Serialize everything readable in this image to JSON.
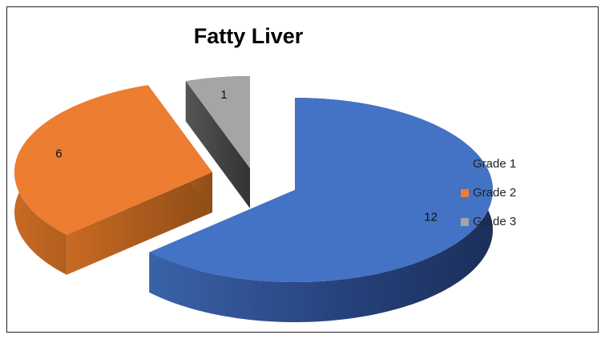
{
  "chart_data": {
    "type": "pie",
    "title": "Fatty Liver",
    "categories": [
      "Grade 1",
      "Grade 2",
      "Grade 3"
    ],
    "values": [
      12,
      6,
      1
    ],
    "colors": [
      "#4472c4",
      "#ed7d31",
      "#a5a5a5"
    ],
    "legend": "right"
  }
}
